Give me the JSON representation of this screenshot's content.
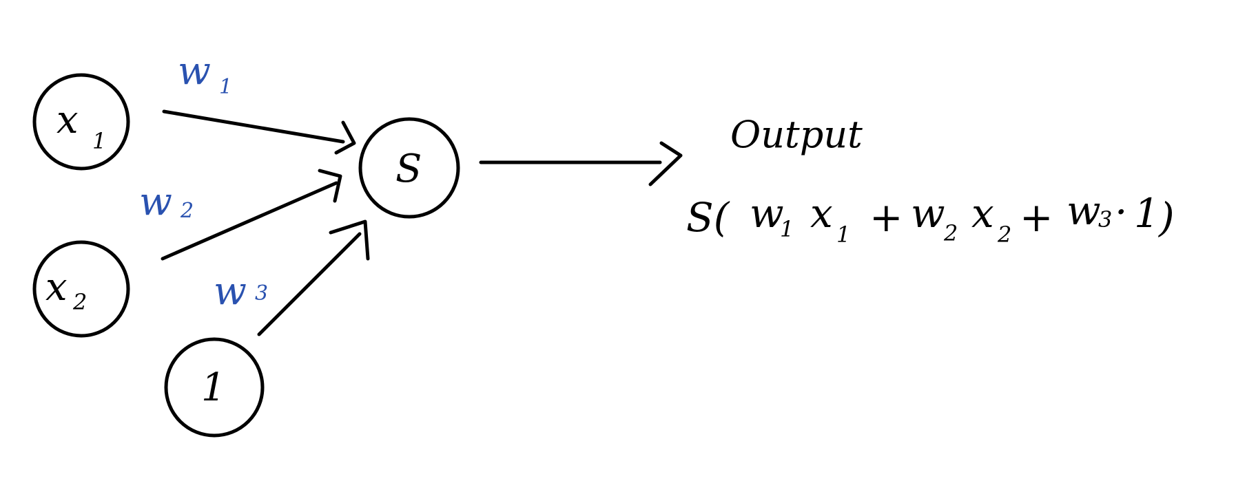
{
  "colors": {
    "ink": "#000000",
    "weight_ink": "#2a52b0",
    "background": "#ffffff"
  },
  "inputs": {
    "x1": {
      "base": "x",
      "sub": "1"
    },
    "x2": {
      "base": "x",
      "sub": "2"
    },
    "bias": {
      "label": "1"
    }
  },
  "weights": {
    "w1": {
      "base": "w",
      "sub": "1"
    },
    "w2": {
      "base": "w",
      "sub": "2"
    },
    "w3": {
      "base": "w",
      "sub": "3"
    }
  },
  "neuron": {
    "label": "S"
  },
  "output": {
    "title": "Output",
    "formula": {
      "func": "S(",
      "w1": "w",
      "w1_sub": "1",
      "x1": "x",
      "x1_sub": "1",
      "plus1": "+",
      "w2": "w",
      "w2_sub": "2",
      "x2": "x",
      "x2_sub": "2",
      "plus2": "+",
      "w3": "w",
      "w3_sub": "3",
      "dot": "·",
      "one": "1",
      "close": ")"
    }
  }
}
